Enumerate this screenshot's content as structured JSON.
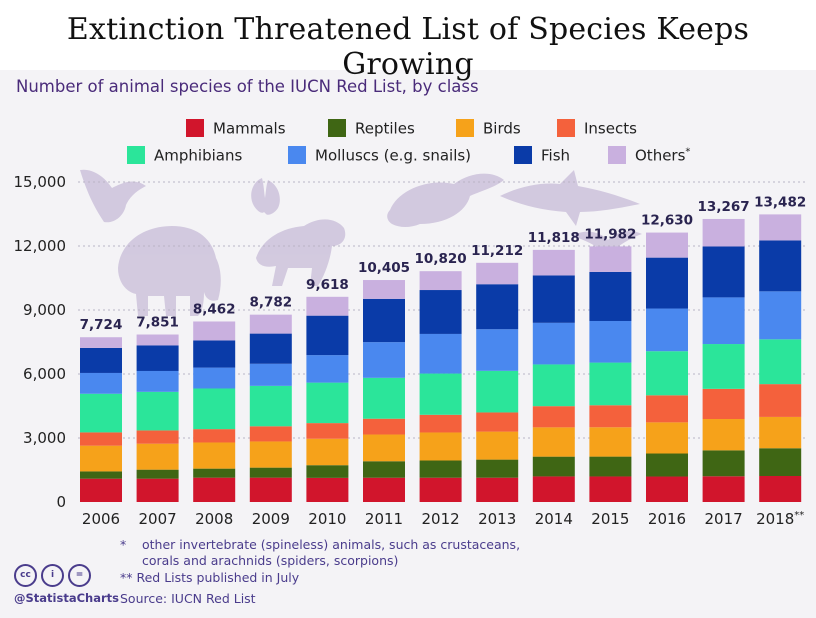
{
  "title": "Extinction Threatened List of Species Keeps Growing",
  "subtitle": "Number of animal species of the IUCN Red List, by class",
  "footnotes": {
    "asterisk_mark": "*",
    "asterisk_line1": "other invertebrate (spineless) animals, such as crustaceans,",
    "asterisk_line2": "corals and arachnids (spiders, scorpions)",
    "double_asterisk": "** Red Lists published in July",
    "source": "Source: IUCN Red List"
  },
  "branding": {
    "handle": "@StatistaCharts",
    "license_icons": [
      "cc",
      "i",
      "="
    ]
  },
  "chart_data": {
    "type": "bar",
    "stacked": true,
    "categories": [
      "2006",
      "2007",
      "2008",
      "2009",
      "2010",
      "2011",
      "2012",
      "2013",
      "2014",
      "2015",
      "2016",
      "2017",
      "2018**"
    ],
    "series": [
      {
        "name": "Mammals",
        "color": "#d1152c",
        "values": [
          1093,
          1094,
          1141,
          1142,
          1131,
          1138,
          1139,
          1140,
          1199,
          1197,
          1194,
          1206,
          1219
        ]
      },
      {
        "name": "Reptiles",
        "color": "#3f6614",
        "values": [
          341,
          422,
          423,
          469,
          594,
          772,
          807,
          847,
          927,
          931,
          1079,
          1215,
          1300
        ]
      },
      {
        "name": "Birds",
        "color": "#f6a21a",
        "values": [
          1206,
          1217,
          1226,
          1227,
          1240,
          1253,
          1313,
          1313,
          1373,
          1375,
          1460,
          1469,
          1469
        ]
      },
      {
        "name": "Insects",
        "color": "#f4613c",
        "values": [
          623,
          623,
          626,
          711,
          733,
          741,
          829,
          898,
          993,
          1032,
          1268,
          1414,
          1537
        ]
      },
      {
        "name": "Amphibians",
        "color": "#2be59a",
        "values": [
          1811,
          1808,
          1905,
          1895,
          1898,
          1917,
          1933,
          1950,
          1957,
          2000,
          2068,
          2100,
          2100
        ]
      },
      {
        "name": "Molluscs (e.g. snails)",
        "color": "#4a88ef",
        "values": [
          975,
          978,
          978,
          1036,
          1288,
          1673,
          1857,
          1950,
          1950,
          1950,
          2000,
          2187,
          2250
        ]
      },
      {
        "name": "Fish",
        "color": "#0a3ba8",
        "values": [
          1173,
          1201,
          1275,
          1414,
          1851,
          2028,
          2058,
          2110,
          2222,
          2300,
          2386,
          2386,
          2386
        ]
      },
      {
        "name": "Others",
        "color": "#c9b0df",
        "values": [
          502,
          508,
          888,
          888,
          883,
          883,
          884,
          1004,
          1197,
          1197,
          1175,
          1290,
          1221
        ]
      }
    ],
    "totals": [
      "7,724",
      "7,851",
      "8,462",
      "8,782",
      "9,618",
      "10,405",
      "10,820",
      "11,212",
      "11,818",
      "11,982",
      "12,630",
      "13,267",
      "13,482"
    ],
    "total_values": [
      7724,
      7851,
      8462,
      8782,
      9618,
      10405,
      10820,
      11212,
      11818,
      11982,
      12630,
      13267,
      13482
    ],
    "legend": {
      "rows": [
        [
          "Mammals",
          "Reptiles",
          "Birds",
          "Insects"
        ],
        [
          "Amphibians",
          "Molluscs (e.g. snails)",
          "Fish",
          "Others"
        ]
      ],
      "others_suffix": "*",
      "placement": "top"
    },
    "ylim": [
      0,
      15000
    ],
    "yticks": [
      0,
      3000,
      6000,
      9000,
      12000,
      15000
    ],
    "ytick_labels": [
      "0",
      "3,000",
      "6,000",
      "9,000",
      "12,000",
      "15,000"
    ],
    "grid": "horizontal dotted",
    "xlabel": "",
    "ylabel": "",
    "background_silhouettes": [
      "eagle-icon",
      "elephant-icon",
      "butterfly-icon",
      "tiger-icon",
      "turtle-icon",
      "shark-icon",
      "bird-icon"
    ]
  }
}
